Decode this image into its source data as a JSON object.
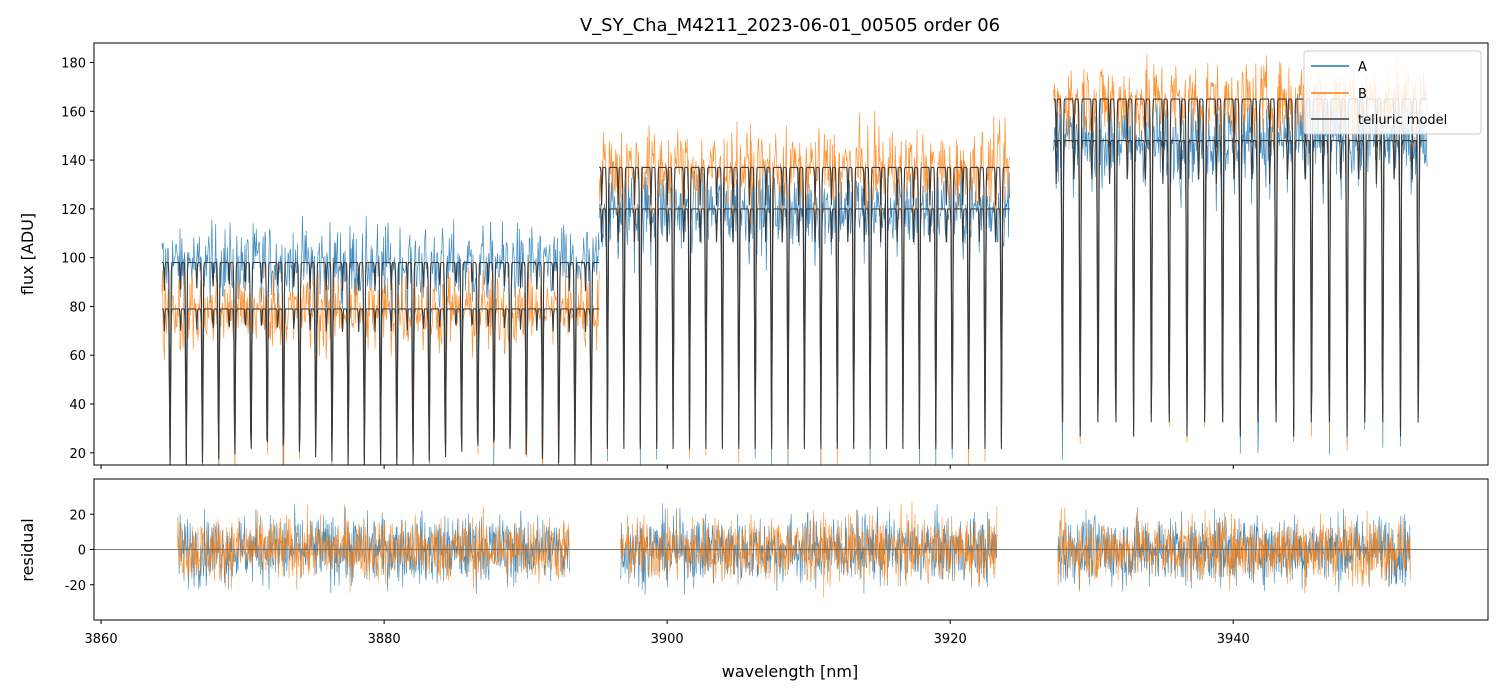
{
  "title": "V_SY_Cha_M4211_2023-06-01_00505  order 06",
  "chart_data": [
    {
      "type": "line",
      "panel": "top",
      "ylabel": "flux [ADU]",
      "xlabel": "",
      "xlim": [
        3859.5,
        3958
      ],
      "ylim": [
        15,
        188
      ],
      "xticks": [
        3860,
        3880,
        3900,
        3920,
        3940
      ],
      "yticks": [
        20,
        40,
        60,
        80,
        100,
        120,
        140,
        160,
        180
      ],
      "legend_position": "top-right",
      "legend": [
        "A",
        "B",
        "telluric model"
      ],
      "segments_nm": [
        [
          3864.3,
          3895.2
        ],
        [
          3895.2,
          3924.2
        ],
        [
          3927.3,
          3953.7
        ]
      ],
      "series": [
        {
          "name": "A",
          "color": "#1f77b4",
          "continuum_levels": [
            98,
            120,
            148
          ],
          "note": "dense telluric-absorbed spectrum"
        },
        {
          "name": "B",
          "color": "#ff7f0e",
          "continuum_levels": [
            79,
            137,
            165
          ],
          "note": "dense telluric-absorbed spectrum"
        },
        {
          "name": "telluric model",
          "color": "#3a3a3a",
          "note": "model fit overlaying A and B"
        }
      ]
    },
    {
      "type": "line",
      "panel": "bottom",
      "ylabel": "residual",
      "xlabel": "wavelength [nm]",
      "xlim": [
        3859.5,
        3958
      ],
      "ylim": [
        -40,
        40
      ],
      "xticks": [
        3860,
        3880,
        3900,
        3920,
        3940
      ],
      "yticks": [
        -20,
        0,
        20
      ],
      "zero_line": 0,
      "segments_nm": [
        [
          3865.4,
          3893.1
        ],
        [
          3896.7,
          3923.3
        ],
        [
          3927.6,
          3952.5
        ]
      ],
      "series": [
        {
          "name": "A",
          "color": "#1f77b4",
          "noise_amplitude": 18
        },
        {
          "name": "B",
          "color": "#ff7f0e",
          "noise_amplitude": 17
        }
      ]
    }
  ]
}
